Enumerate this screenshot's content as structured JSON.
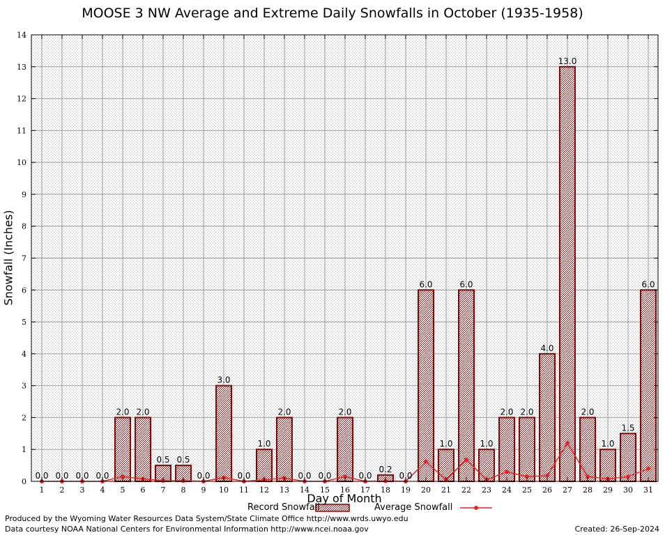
{
  "chart_data": {
    "type": "bar",
    "title": "MOOSE 3 NW Average and Extreme Daily Snowfalls in October (1935-1958)",
    "xlabel": "Day of Month",
    "ylabel": "Snowfall (Inches)",
    "ylim": [
      0,
      14
    ],
    "yticks": [
      0,
      1,
      2,
      3,
      4,
      5,
      6,
      7,
      8,
      9,
      10,
      11,
      12,
      13,
      14
    ],
    "grid": true,
    "legend_position": "bottom",
    "categories": [
      "1",
      "2",
      "3",
      "4",
      "5",
      "6",
      "7",
      "8",
      "9",
      "10",
      "11",
      "12",
      "13",
      "14",
      "15",
      "16",
      "17",
      "18",
      "19",
      "20",
      "21",
      "22",
      "23",
      "24",
      "25",
      "26",
      "27",
      "28",
      "29",
      "30",
      "31"
    ],
    "series": [
      {
        "name": "Record Snowfall",
        "kind": "bar",
        "color": "#8b0000",
        "values": [
          0.0,
          0.0,
          0.0,
          0.0,
          2.0,
          2.0,
          0.5,
          0.5,
          0.0,
          3.0,
          0.0,
          1.0,
          2.0,
          0.0,
          0.0,
          2.0,
          0.0,
          0.2,
          0.0,
          6.0,
          1.0,
          6.0,
          1.0,
          2.0,
          2.0,
          4.0,
          13.0,
          2.0,
          1.0,
          1.5,
          6.0
        ],
        "labels": [
          "0.0",
          "0.0",
          "0.0",
          "0.0",
          "2.0",
          "2.0",
          "0.5",
          "0.5",
          "0.0",
          "3.0",
          "0.0",
          "1.0",
          "2.0",
          "0.0",
          "0.0",
          "2.0",
          "0.0",
          "0.2",
          "0.0",
          "6.0",
          "1.0",
          "6.0",
          "1.0",
          "2.0",
          "2.0",
          "4.0",
          "13.0",
          "2.0",
          "1.0",
          "1.5",
          "6.0"
        ]
      },
      {
        "name": "Average Snowfall",
        "kind": "line",
        "color": "#ee2222",
        "values": [
          0.0,
          0.0,
          0.0,
          0.0,
          0.15,
          0.08,
          0.02,
          0.02,
          0.0,
          0.12,
          0.0,
          0.05,
          0.1,
          0.0,
          0.0,
          0.15,
          0.0,
          0.01,
          0.0,
          0.62,
          0.05,
          0.68,
          0.05,
          0.3,
          0.15,
          0.18,
          1.2,
          0.15,
          0.08,
          0.15,
          0.4
        ]
      }
    ]
  },
  "footer": {
    "produced_by": "Produced by the Wyoming Water Resources Data System/State Climate Office http://www.wrds.uwyo.edu",
    "data_courtesy": "Data courtesy NOAA National Centers for Environmental Information http://www.ncei.noaa.gov",
    "created": "Created:  26-Sep-2024"
  }
}
